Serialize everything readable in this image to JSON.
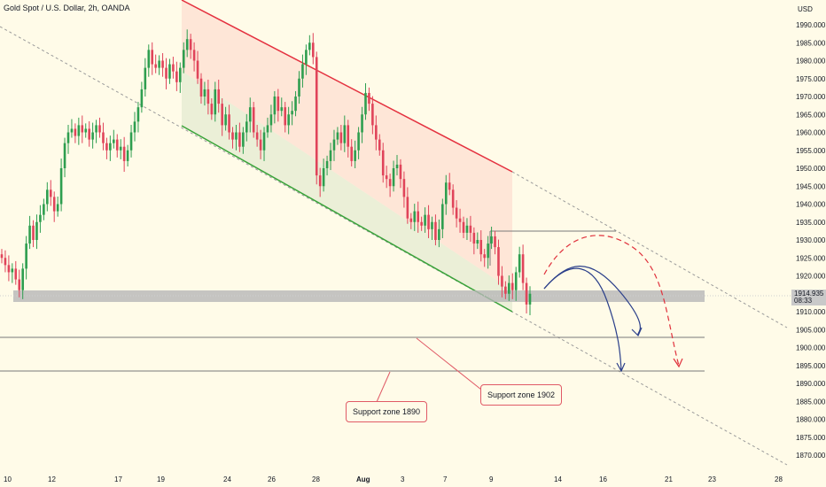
{
  "header": {
    "title": "Gold Spot / U.S. Dollar, 2h, OANDA",
    "currency": "USD"
  },
  "chart_data": {
    "type": "candlestick",
    "y_ticks": [
      "1990.000",
      "1985.000",
      "1980.000",
      "1975.000",
      "1970.000",
      "1965.000",
      "1960.000",
      "1955.000",
      "1950.000",
      "1945.000",
      "1940.000",
      "1935.000",
      "1930.000",
      "1925.000",
      "1920.000",
      "1915.000",
      "1910.000",
      "1905.000",
      "1900.000",
      "1895.000",
      "1890.000",
      "1885.000",
      "1880.000",
      "1875.000",
      "1870.000"
    ],
    "x_ticks": [
      "10",
      "12",
      "17",
      "19",
      "24",
      "26",
      "28",
      "Aug",
      "3",
      "7",
      "9",
      "14",
      "16",
      "21",
      "23",
      "28"
    ],
    "ylim": [
      1866,
      1993
    ],
    "current_price": "1914.935",
    "countdown": "08:33",
    "support_zones": [
      {
        "label": "Support zone 1902",
        "price": 1902.5
      },
      {
        "label": "Support zone 1890",
        "price": 1893.2
      }
    ],
    "closes": [
      1925,
      1923,
      1921,
      1922,
      1919,
      1916,
      1922,
      1929,
      1934,
      1930,
      1935,
      1937,
      1940,
      1944,
      1942,
      1938,
      1940,
      1950,
      1957,
      1960,
      1961,
      1959,
      1962,
      1960,
      1961,
      1958,
      1960,
      1962,
      1960,
      1957,
      1955,
      1957,
      1958,
      1955,
      1956,
      1952,
      1955,
      1960,
      1963,
      1967,
      1972,
      1978,
      1983,
      1979,
      1978,
      1980,
      1978,
      1975,
      1979,
      1977,
      1974,
      1978,
      1983,
      1986,
      1983,
      1980,
      1975,
      1970,
      1972,
      1968,
      1965,
      1972,
      1968,
      1962,
      1965,
      1960,
      1958,
      1960,
      1956,
      1960,
      1963,
      1967,
      1960,
      1958,
      1955,
      1960,
      1962,
      1965,
      1970,
      1966,
      1967,
      1962,
      1965,
      1966,
      1970,
      1975,
      1979,
      1983,
      1985,
      1981,
      1948,
      1945,
      1950,
      1952,
      1955,
      1958,
      1960,
      1957,
      1962,
      1956,
      1952,
      1955,
      1960,
      1965,
      1971,
      1968,
      1962,
      1958,
      1955,
      1948,
      1947,
      1945,
      1950,
      1951,
      1947,
      1942,
      1936,
      1935,
      1938,
      1935,
      1934,
      1937,
      1933,
      1935,
      1930,
      1933,
      1940,
      1946,
      1944,
      1939,
      1936,
      1935,
      1932,
      1934,
      1932,
      1929,
      1930,
      1926,
      1925,
      1929,
      1931,
      1928,
      1920,
      1917,
      1915,
      1918,
      1916,
      1921,
      1926,
      1918,
      1912,
      1915
    ]
  }
}
